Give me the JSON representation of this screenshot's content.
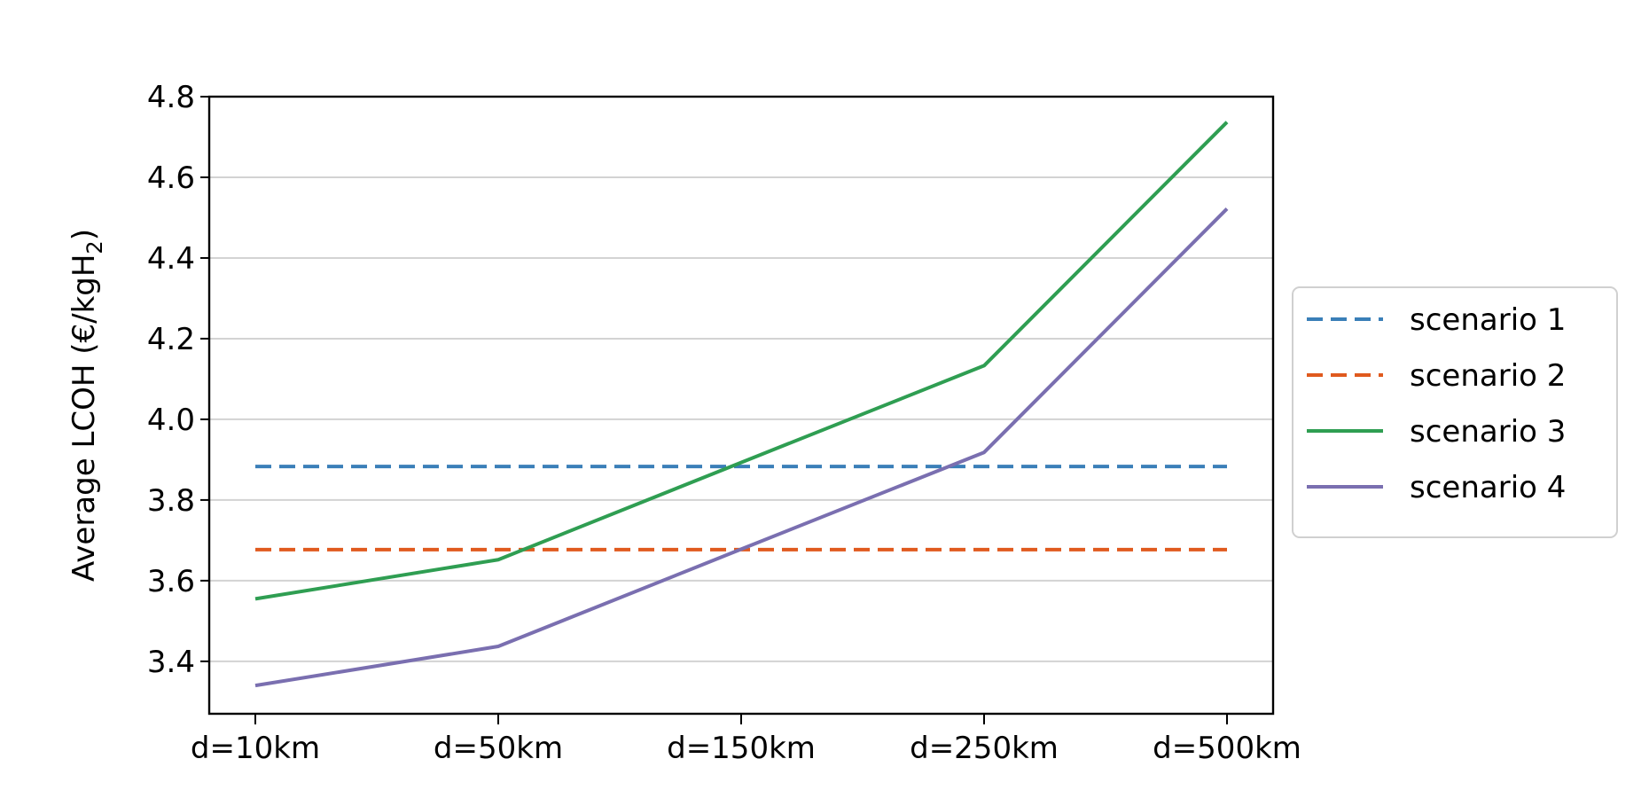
{
  "chart_data": {
    "type": "line",
    "categories": [
      "d=10km",
      "d=50km",
      "d=150km",
      "d=250km",
      "d=500km"
    ],
    "ylabel": "Average LCOH (€/kgH",
    "ylabel_subscript": "2",
    "ylabel_close": ")",
    "ylim": [
      3.27,
      4.8
    ],
    "yticks": [
      3.4,
      3.6,
      3.8,
      4.0,
      4.2,
      4.4,
      4.6,
      4.8
    ],
    "ytick_labels": [
      "3.4",
      "3.6",
      "3.8",
      "4.0",
      "4.2",
      "4.4",
      "4.6",
      "4.8"
    ],
    "grid": "horizontal",
    "legend_position": "outside-right",
    "series": [
      {
        "name": "scenario 1",
        "values": [
          3.883,
          3.883,
          3.883,
          3.883,
          3.883
        ],
        "color": "#3a7fb8",
        "style": "dashed"
      },
      {
        "name": "scenario 2",
        "values": [
          3.677,
          3.677,
          3.677,
          3.677,
          3.677
        ],
        "color": "#e05a1e",
        "style": "dashed"
      },
      {
        "name": "scenario 3",
        "values": [
          3.555,
          3.652,
          3.893,
          4.133,
          4.737
        ],
        "color": "#2f9e52",
        "style": "solid"
      },
      {
        "name": "scenario 4",
        "values": [
          3.34,
          3.437,
          3.678,
          3.918,
          4.522
        ],
        "color": "#7a6fb0",
        "style": "solid"
      }
    ]
  }
}
